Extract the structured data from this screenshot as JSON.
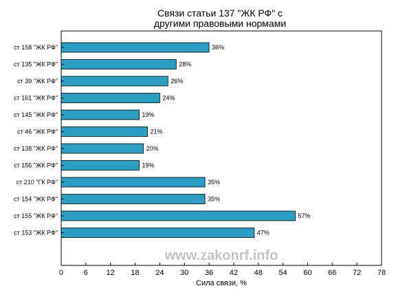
{
  "chart_data": {
    "type": "bar",
    "orientation": "horizontal",
    "title_lines": [
      "Связи статьи 137 \"ЖК РФ\" с",
      "другими правовыми нормами"
    ],
    "xlabel": "Сила связи, %",
    "ylabel": "",
    "xlim": [
      0,
      78
    ],
    "xticks": [
      0,
      6,
      12,
      18,
      24,
      30,
      36,
      42,
      48,
      54,
      60,
      66,
      72,
      78
    ],
    "categories": [
      "ст 158 \"ЖК РФ\"",
      "ст 135 \"ЖК РФ\"",
      "ст 39 \"ЖК РФ\"",
      "ст 161 \"ЖК РФ\"",
      "ст 145 \"ЖК РФ\"",
      "ст 46 \"ЖК РФ\"",
      "ст 138 \"ЖК РФ\"",
      "ст 156 \"ЖК РФ\"",
      "ст 210 \"ГК РФ\"",
      "ст 154 \"ЖК РФ\"",
      "ст 155 \"ЖК РФ\"",
      "ст 153 \"ЖК РФ\""
    ],
    "values": [
      36,
      28,
      26,
      24,
      19,
      21,
      20,
      19,
      35,
      35,
      57,
      47
    ],
    "value_labels": [
      "36%",
      "28%",
      "26%",
      "24%",
      "19%",
      "21%",
      "20%",
      "19%",
      "35%",
      "35%",
      "57%",
      "47%"
    ],
    "bar_color": "#2b9ec4",
    "grid": false,
    "legend": "none"
  },
  "watermark": "www.zakonrf.info"
}
